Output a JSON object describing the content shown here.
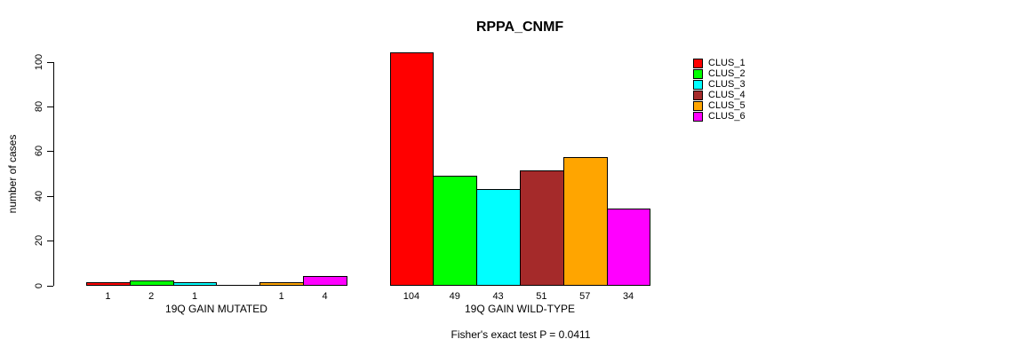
{
  "chart_data": {
    "type": "bar",
    "title": "RPPA_CNMF",
    "ylabel": "number of cases",
    "subtitle": "Fisher's exact test P = 0.0411",
    "yticks": [
      0,
      20,
      40,
      60,
      80,
      100
    ],
    "ylim": [
      0,
      104
    ],
    "grid": false,
    "legend_position": "right",
    "clusters": [
      {
        "name": "CLUS_1",
        "color": "#FF0000"
      },
      {
        "name": "CLUS_2",
        "color": "#00FF00"
      },
      {
        "name": "CLUS_3",
        "color": "#00FFFF"
      },
      {
        "name": "CLUS_4",
        "color": "#A52A2A"
      },
      {
        "name": "CLUS_5",
        "color": "#FFA500"
      },
      {
        "name": "CLUS_6",
        "color": "#FF00FF"
      }
    ],
    "groups": [
      {
        "label": "19Q GAIN MUTATED",
        "values": [
          1,
          2,
          1,
          0,
          1,
          4
        ],
        "bar_labels": [
          "1",
          "2",
          "1",
          "",
          "1",
          "4"
        ]
      },
      {
        "label": "19Q GAIN WILD-TYPE",
        "values": [
          104,
          49,
          43,
          51,
          57,
          34
        ],
        "bar_labels": [
          "104",
          "49",
          "43",
          "51",
          "57",
          "34"
        ]
      }
    ]
  }
}
